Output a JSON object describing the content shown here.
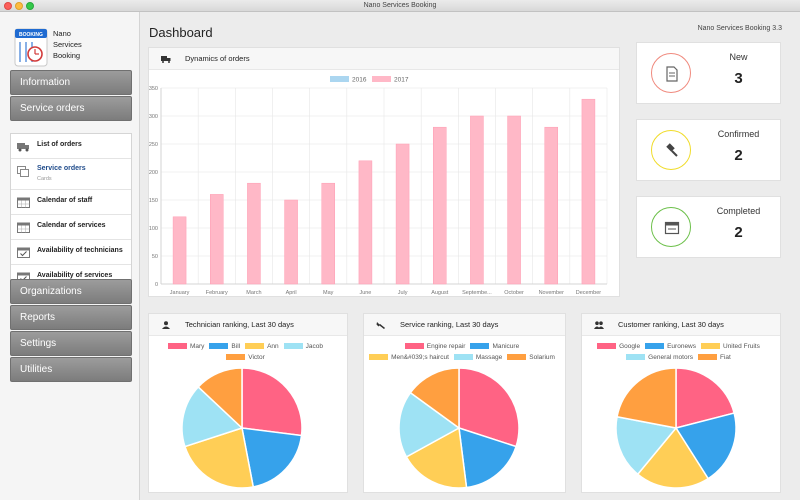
{
  "window": {
    "title": "Nano Services Booking"
  },
  "app": {
    "name_line1": "Nano",
    "name_line2": "Services",
    "name_line3": "Booking",
    "version": "Nano Services Booking 3.3",
    "logo_text": "BOOKING"
  },
  "sidebar": {
    "information": "Information",
    "service_orders": "Service orders",
    "sub_items": [
      {
        "label": "List of orders",
        "icon": "truck-icon"
      },
      {
        "label": "Service orders",
        "sub": "Cards",
        "icon": "cards-icon"
      },
      {
        "label": "Calendar of staff",
        "icon": "calendar-icon"
      },
      {
        "label": "Calendar of services",
        "icon": "calendar-icon"
      },
      {
        "label": "Availability of technicians",
        "icon": "calendar-check-icon"
      },
      {
        "label": "Availability of services",
        "icon": "calendar-check-icon"
      }
    ],
    "organizations": "Organizations",
    "reports": "Reports",
    "settings": "Settings",
    "utilities": "Utilities"
  },
  "main": {
    "title": "Dashboard"
  },
  "orders_chart": {
    "title": "Dynamics of orders"
  },
  "stats": [
    {
      "label": "New",
      "value": "3",
      "color": "#f08a7e",
      "icon": "document-icon"
    },
    {
      "label": "Confirmed",
      "value": "2",
      "color": "#f0dc2a",
      "icon": "gavel-icon"
    },
    {
      "label": "Completed",
      "value": "2",
      "color": "#6cc04a",
      "icon": "browser-window-icon"
    }
  ],
  "tech_panel": {
    "title": "Technician ranking, Last 30 days"
  },
  "service_panel": {
    "title": "Service ranking, Last 30 days"
  },
  "customer_panel": {
    "title": "Customer ranking, Last 30 days"
  },
  "chart_data": [
    {
      "type": "bar",
      "title": "Dynamics of orders",
      "categories": [
        "January",
        "February",
        "March",
        "April",
        "May",
        "June",
        "July",
        "August",
        "Septembe...",
        "October",
        "November",
        "December"
      ],
      "series": [
        {
          "name": "2016",
          "color": "#abd6f0",
          "values": [
            0,
            0,
            0,
            0,
            0,
            0,
            0,
            0,
            0,
            0,
            0,
            0
          ]
        },
        {
          "name": "2017",
          "color": "#ffb8c7",
          "values": [
            120,
            160,
            180,
            150,
            180,
            220,
            250,
            280,
            300,
            300,
            280,
            330
          ]
        }
      ],
      "ylim": [
        0,
        350
      ],
      "yticks": [
        0,
        50,
        100,
        150,
        200,
        250,
        300,
        350
      ],
      "grid": true,
      "legend": "top"
    },
    {
      "type": "pie",
      "title": "Technician ranking, Last 30 days",
      "labels": [
        "Mary",
        "Bill",
        "Ann",
        "Jacob",
        "Victor"
      ],
      "values": [
        27,
        20,
        23,
        17,
        13
      ],
      "colors": [
        "#ff6384",
        "#36a2eb",
        "#ffce56",
        "#9ee2f4",
        "#ff9f40"
      ],
      "legend": "top"
    },
    {
      "type": "pie",
      "title": "Service ranking, Last 30 days",
      "labels": [
        "Engine repair",
        "Manicure",
        "Men&#039;s haircut",
        "Massage",
        "Solarium"
      ],
      "values": [
        30,
        18,
        19,
        18,
        15
      ],
      "colors": [
        "#ff6384",
        "#36a2eb",
        "#ffce56",
        "#9ee2f4",
        "#ff9f40"
      ],
      "legend": "top"
    },
    {
      "type": "pie",
      "title": "Customer ranking, Last 30 days",
      "labels": [
        "Google",
        "Euronews",
        "United Fruits",
        "General motors",
        "Fiat"
      ],
      "values": [
        21,
        20,
        20,
        17,
        22
      ],
      "colors": [
        "#ff6384",
        "#36a2eb",
        "#ffce56",
        "#9ee2f4",
        "#ff9f40"
      ],
      "legend": "top"
    }
  ]
}
